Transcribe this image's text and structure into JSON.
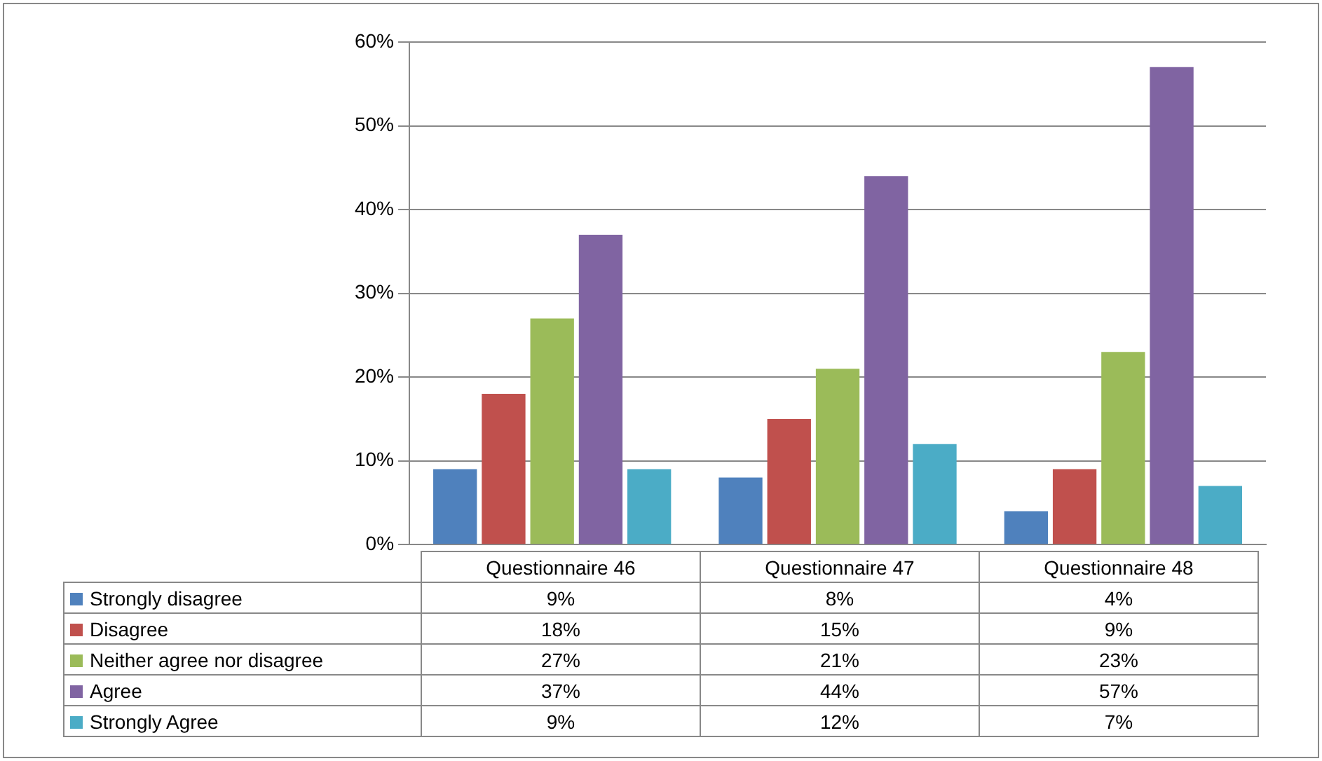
{
  "chart_data": {
    "type": "bar",
    "categories": [
      "Questionnaire 46",
      "Questionnaire 47",
      "Questionnaire 48"
    ],
    "series": [
      {
        "name": "Strongly disagree",
        "color": "#4f81bd",
        "values": [
          9,
          8,
          4
        ],
        "value_labels": [
          "9%",
          "8%",
          "4%"
        ]
      },
      {
        "name": "Disagree",
        "color": "#c0504d",
        "values": [
          18,
          15,
          9
        ],
        "value_labels": [
          "18%",
          "15%",
          "9%"
        ]
      },
      {
        "name": "Neither agree nor disagree",
        "color": "#9bbb59",
        "values": [
          27,
          21,
          23
        ],
        "value_labels": [
          "27%",
          "21%",
          "23%"
        ]
      },
      {
        "name": "Agree",
        "color": "#8064a2",
        "values": [
          37,
          44,
          57
        ],
        "value_labels": [
          "37%",
          "44%",
          "57%"
        ]
      },
      {
        "name": "Strongly Agree",
        "color": "#4bacc6",
        "values": [
          9,
          12,
          7
        ],
        "value_labels": [
          "9%",
          "12%",
          "7%"
        ]
      }
    ],
    "ylim": [
      0,
      60
    ],
    "yticks": [
      {
        "value": 0,
        "label": "0%"
      },
      {
        "value": 10,
        "label": "10%"
      },
      {
        "value": 20,
        "label": "20%"
      },
      {
        "value": 30,
        "label": "30%"
      },
      {
        "value": 40,
        "label": "40%"
      },
      {
        "value": 50,
        "label": "50%"
      },
      {
        "value": 60,
        "label": "60%"
      }
    ],
    "grid": "y",
    "legend": "bottom"
  }
}
